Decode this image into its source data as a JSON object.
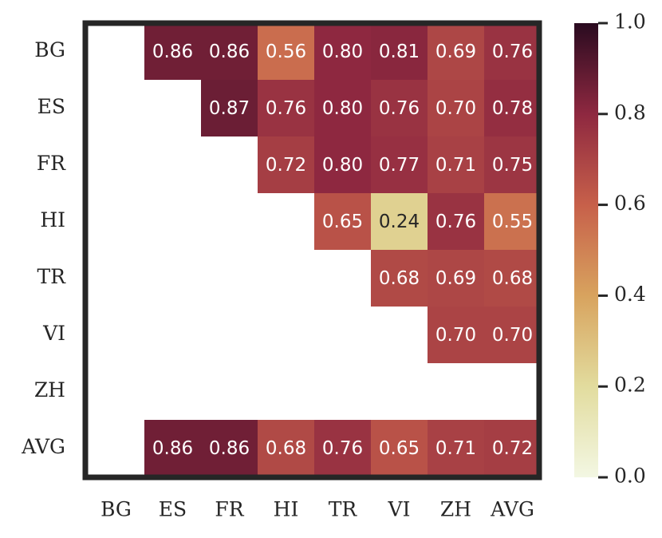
{
  "chart_data": {
    "type": "heatmap",
    "title": "",
    "xlabel": "",
    "ylabel": "",
    "x_categories": [
      "BG",
      "ES",
      "FR",
      "HI",
      "TR",
      "VI",
      "ZH",
      "AVG"
    ],
    "y_categories": [
      "BG",
      "ES",
      "FR",
      "HI",
      "TR",
      "VI",
      "ZH",
      "AVG"
    ],
    "values": [
      [
        null,
        0.86,
        0.86,
        0.56,
        0.8,
        0.81,
        0.69,
        0.76
      ],
      [
        null,
        null,
        0.87,
        0.76,
        0.8,
        0.76,
        0.7,
        0.78
      ],
      [
        null,
        null,
        null,
        0.72,
        0.8,
        0.77,
        0.71,
        0.75
      ],
      [
        null,
        null,
        null,
        null,
        0.65,
        0.24,
        0.76,
        0.55
      ],
      [
        null,
        null,
        null,
        null,
        null,
        0.68,
        0.69,
        0.68
      ],
      [
        null,
        null,
        null,
        null,
        null,
        null,
        0.7,
        0.7
      ],
      [
        null,
        null,
        null,
        null,
        null,
        null,
        null,
        null
      ],
      [
        null,
        0.86,
        0.86,
        0.68,
        0.76,
        0.65,
        0.71,
        0.72
      ]
    ],
    "value_labels": [
      [
        null,
        "0.86",
        "0.86",
        "0.56",
        "0.80",
        "0.81",
        "0.69",
        "0.76"
      ],
      [
        null,
        null,
        "0.87",
        "0.76",
        "0.80",
        "0.76",
        "0.70",
        "0.78"
      ],
      [
        null,
        null,
        null,
        "0.72",
        "0.80",
        "0.77",
        "0.71",
        "0.75"
      ],
      [
        null,
        null,
        null,
        null,
        "0.65",
        "0.24",
        "0.76",
        "0.55"
      ],
      [
        null,
        null,
        null,
        null,
        null,
        "0.68",
        "0.69",
        "0.68"
      ],
      [
        null,
        null,
        null,
        null,
        null,
        null,
        "0.70",
        "0.70"
      ],
      [
        null,
        null,
        null,
        null,
        null,
        null,
        null,
        null
      ],
      [
        null,
        "0.86",
        "0.86",
        "0.68",
        "0.76",
        "0.65",
        "0.71",
        "0.72"
      ]
    ],
    "colorbar": {
      "range": [
        0.0,
        1.0
      ],
      "ticks": [
        0.0,
        0.2,
        0.4,
        0.6,
        0.8,
        1.0
      ],
      "tick_labels": [
        "0.0",
        "0.2",
        "0.4",
        "0.6",
        "0.8",
        "1.0"
      ],
      "colormap_stops": [
        {
          "v": 0.0,
          "color": "#f3f7e3"
        },
        {
          "v": 0.2,
          "color": "#e2dc9e"
        },
        {
          "v": 0.4,
          "color": "#d8a35e"
        },
        {
          "v": 0.6,
          "color": "#c7604a"
        },
        {
          "v": 0.8,
          "color": "#8e2840"
        },
        {
          "v": 1.0,
          "color": "#2a0b20"
        }
      ]
    },
    "grid": false,
    "legend": "none",
    "frame_color": "#262626",
    "text_color_light": "#ffffff",
    "text_color_dark": "#262626"
  }
}
